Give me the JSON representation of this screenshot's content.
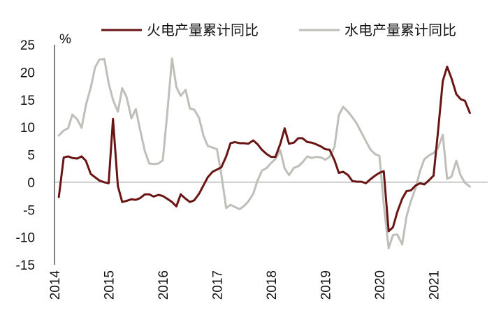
{
  "chart_data": {
    "type": "line",
    "title": "",
    "xlabel": "",
    "ylabel": "%",
    "ylim": [
      -15,
      25
    ],
    "yticks": [
      -15,
      -10,
      -5,
      0,
      5,
      10,
      15,
      20,
      25
    ],
    "xlim": [
      2014,
      2022
    ],
    "xticks": [
      "2014",
      "2015",
      "2016",
      "2017",
      "2018",
      "2019",
      "2020",
      "2021"
    ],
    "grid": false,
    "zero_line": true,
    "legend_position": "top",
    "series": [
      {
        "name": "火电产量累计同比",
        "color": "#6b1414",
        "points": [
          [
            2014.08,
            -2.7
          ],
          [
            2014.17,
            4.5
          ],
          [
            2014.25,
            4.7
          ],
          [
            2014.33,
            4.4
          ],
          [
            2014.42,
            4.3
          ],
          [
            2014.5,
            4.7
          ],
          [
            2014.58,
            3.9
          ],
          [
            2014.67,
            1.5
          ],
          [
            2014.75,
            0.9
          ],
          [
            2014.83,
            0.3
          ],
          [
            2014.92,
            0.0
          ],
          [
            2015.0,
            -0.2
          ],
          [
            2015.08,
            11.5
          ],
          [
            2015.17,
            -0.7
          ],
          [
            2015.25,
            -3.6
          ],
          [
            2015.33,
            -3.4
          ],
          [
            2015.42,
            -3.1
          ],
          [
            2015.5,
            -3.2
          ],
          [
            2015.58,
            -2.9
          ],
          [
            2015.67,
            -2.2
          ],
          [
            2015.75,
            -2.2
          ],
          [
            2015.83,
            -2.6
          ],
          [
            2015.92,
            -2.3
          ],
          [
            2016.0,
            -2.5
          ],
          [
            2016.08,
            -3.0
          ],
          [
            2016.17,
            -3.6
          ],
          [
            2016.25,
            -4.4
          ],
          [
            2016.33,
            -2.2
          ],
          [
            2016.42,
            -3.0
          ],
          [
            2016.5,
            -3.6
          ],
          [
            2016.58,
            -3.3
          ],
          [
            2016.67,
            -2.1
          ],
          [
            2016.75,
            -0.6
          ],
          [
            2016.83,
            0.9
          ],
          [
            2016.92,
            1.9
          ],
          [
            2017.0,
            2.3
          ],
          [
            2017.08,
            2.7
          ],
          [
            2017.17,
            4.7
          ],
          [
            2017.25,
            7.1
          ],
          [
            2017.33,
            7.3
          ],
          [
            2017.42,
            7.1
          ],
          [
            2017.5,
            7.1
          ],
          [
            2017.58,
            7.0
          ],
          [
            2017.67,
            7.6
          ],
          [
            2017.75,
            6.9
          ],
          [
            2017.83,
            5.9
          ],
          [
            2017.92,
            5.1
          ],
          [
            2018.0,
            4.6
          ],
          [
            2018.08,
            4.6
          ],
          [
            2018.17,
            7.0
          ],
          [
            2018.25,
            9.8
          ],
          [
            2018.33,
            7.0
          ],
          [
            2018.42,
            7.2
          ],
          [
            2018.5,
            8.0
          ],
          [
            2018.58,
            8.0
          ],
          [
            2018.67,
            7.3
          ],
          [
            2018.75,
            7.2
          ],
          [
            2018.83,
            6.9
          ],
          [
            2018.92,
            6.5
          ],
          [
            2019.0,
            6.0
          ],
          [
            2019.08,
            5.9
          ],
          [
            2019.17,
            4.0
          ],
          [
            2019.25,
            1.7
          ],
          [
            2019.33,
            1.9
          ],
          [
            2019.42,
            1.3
          ],
          [
            2019.5,
            0.2
          ],
          [
            2019.58,
            0.1
          ],
          [
            2019.67,
            0.1
          ],
          [
            2019.75,
            -0.2
          ],
          [
            2019.83,
            0.5
          ],
          [
            2019.92,
            1.2
          ],
          [
            2020.0,
            1.7
          ],
          [
            2020.08,
            2.0
          ],
          [
            2020.17,
            -8.9
          ],
          [
            2020.25,
            -8.2
          ],
          [
            2020.33,
            -5.4
          ],
          [
            2020.42,
            -3.0
          ],
          [
            2020.5,
            -1.6
          ],
          [
            2020.58,
            -1.5
          ],
          [
            2020.67,
            -0.6
          ],
          [
            2020.75,
            -0.2
          ],
          [
            2020.83,
            -0.4
          ],
          [
            2020.92,
            0.4
          ],
          [
            2021.0,
            1.2
          ],
          [
            2021.08,
            9.0
          ],
          [
            2021.17,
            18.4
          ],
          [
            2021.25,
            21.0
          ],
          [
            2021.33,
            18.9
          ],
          [
            2021.42,
            16.0
          ],
          [
            2021.5,
            15.1
          ],
          [
            2021.58,
            14.8
          ],
          [
            2021.67,
            12.6
          ]
        ]
      },
      {
        "name": "水电产量累计同比",
        "color": "#bfbfb9",
        "points": [
          [
            2014.08,
            8.5
          ],
          [
            2014.17,
            9.4
          ],
          [
            2014.25,
            9.8
          ],
          [
            2014.33,
            12.3
          ],
          [
            2014.42,
            11.4
          ],
          [
            2014.5,
            9.9
          ],
          [
            2014.58,
            14.0
          ],
          [
            2014.67,
            17.2
          ],
          [
            2014.75,
            20.9
          ],
          [
            2014.83,
            22.3
          ],
          [
            2014.92,
            22.4
          ],
          [
            2015.0,
            18.0
          ],
          [
            2015.08,
            15.0
          ],
          [
            2015.17,
            12.8
          ],
          [
            2015.25,
            17.1
          ],
          [
            2015.33,
            15.5
          ],
          [
            2015.42,
            11.6
          ],
          [
            2015.5,
            13.3
          ],
          [
            2015.58,
            9.6
          ],
          [
            2015.67,
            5.6
          ],
          [
            2015.75,
            3.4
          ],
          [
            2015.83,
            3.3
          ],
          [
            2015.92,
            3.4
          ],
          [
            2016.0,
            4.0
          ],
          [
            2016.08,
            12.3
          ],
          [
            2016.17,
            22.5
          ],
          [
            2016.25,
            17.3
          ],
          [
            2016.33,
            15.7
          ],
          [
            2016.42,
            16.8
          ],
          [
            2016.5,
            13.4
          ],
          [
            2016.58,
            13.2
          ],
          [
            2016.67,
            11.7
          ],
          [
            2016.75,
            8.5
          ],
          [
            2016.83,
            6.6
          ],
          [
            2016.92,
            6.3
          ],
          [
            2017.0,
            6.0
          ],
          [
            2017.08,
            1.5
          ],
          [
            2017.17,
            -4.7
          ],
          [
            2017.25,
            -4.1
          ],
          [
            2017.33,
            -4.5
          ],
          [
            2017.42,
            -4.9
          ],
          [
            2017.5,
            -4.3
          ],
          [
            2017.58,
            -3.5
          ],
          [
            2017.67,
            -2.1
          ],
          [
            2017.75,
            0.3
          ],
          [
            2017.83,
            2.1
          ],
          [
            2017.92,
            2.6
          ],
          [
            2018.0,
            3.5
          ],
          [
            2018.08,
            4.2
          ],
          [
            2018.17,
            5.8
          ],
          [
            2018.25,
            2.5
          ],
          [
            2018.33,
            1.3
          ],
          [
            2018.42,
            2.6
          ],
          [
            2018.5,
            2.9
          ],
          [
            2018.58,
            3.6
          ],
          [
            2018.67,
            4.7
          ],
          [
            2018.75,
            4.4
          ],
          [
            2018.83,
            4.6
          ],
          [
            2018.92,
            4.5
          ],
          [
            2019.0,
            4.1
          ],
          [
            2019.08,
            4.6
          ],
          [
            2019.17,
            6.4
          ],
          [
            2019.25,
            12.2
          ],
          [
            2019.33,
            13.7
          ],
          [
            2019.42,
            12.8
          ],
          [
            2019.5,
            11.8
          ],
          [
            2019.58,
            10.7
          ],
          [
            2019.67,
            9.0
          ],
          [
            2019.75,
            7.5
          ],
          [
            2019.83,
            6.0
          ],
          [
            2019.92,
            5.1
          ],
          [
            2020.0,
            4.8
          ],
          [
            2020.08,
            -4.0
          ],
          [
            2020.17,
            -12.0
          ],
          [
            2020.25,
            -9.6
          ],
          [
            2020.33,
            -9.5
          ],
          [
            2020.42,
            -11.3
          ],
          [
            2020.5,
            -6.2
          ],
          [
            2020.58,
            -3.5
          ],
          [
            2020.67,
            -1.0
          ],
          [
            2020.75,
            2.0
          ],
          [
            2020.83,
            4.2
          ],
          [
            2020.92,
            4.9
          ],
          [
            2021.0,
            5.3
          ],
          [
            2021.08,
            6.2
          ],
          [
            2021.17,
            8.6
          ],
          [
            2021.25,
            0.6
          ],
          [
            2021.33,
            1.0
          ],
          [
            2021.42,
            3.9
          ],
          [
            2021.5,
            1.2
          ],
          [
            2021.58,
            -0.1
          ],
          [
            2021.67,
            -0.8
          ]
        ]
      }
    ]
  }
}
